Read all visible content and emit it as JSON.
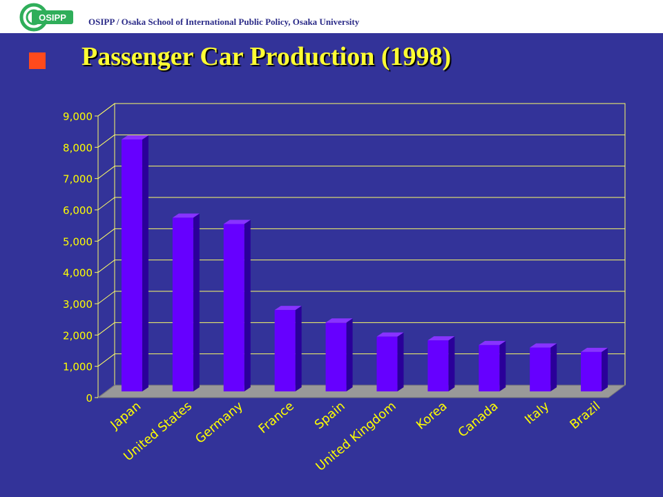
{
  "header": {
    "logo_text": "OSIPP",
    "institution": "OSIPP / Osaka School of International Public Policy, Osaka University"
  },
  "slide": {
    "title": "Passenger Car Production (1998)"
  },
  "colors": {
    "background": "#333399",
    "bar_front": "#6600ff",
    "bar_side": "#2a0099",
    "bar_top": "#8833ff",
    "gridline": "#ffff66",
    "floor": "#999999",
    "text": "#ffff00",
    "bullet": "#ff4a1c"
  },
  "chart_data": {
    "type": "bar",
    "categories": [
      "Japan",
      "United States",
      "Germany",
      "France",
      "Spain",
      "United Kingdom",
      "Korea",
      "Canada",
      "Italy",
      "Brazil"
    ],
    "values": [
      8050,
      5550,
      5350,
      2600,
      2200,
      1750,
      1630,
      1480,
      1400,
      1260
    ],
    "ylim": [
      0,
      9000
    ],
    "yticks": [
      "0",
      "1,000",
      "2,000",
      "3,000",
      "4,000",
      "5,000",
      "6,000",
      "7,000",
      "8,000",
      "9,000"
    ],
    "grid": true,
    "title": "",
    "xlabel": "",
    "ylabel": ""
  }
}
